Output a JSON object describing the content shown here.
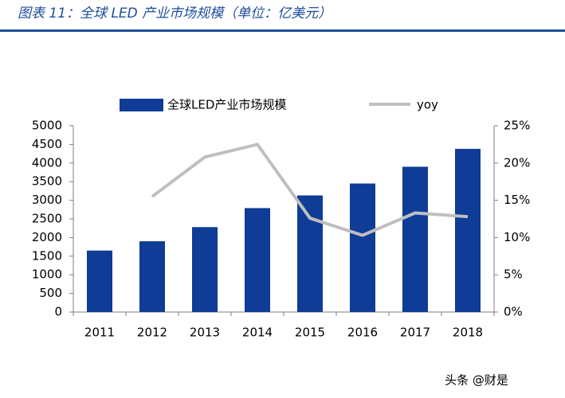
{
  "chart_data": {
    "type": "bar",
    "title": "图表 11：全球 LED 产业市场规模（单位：亿美元）",
    "categories": [
      "2011",
      "2012",
      "2013",
      "2014",
      "2015",
      "2016",
      "2017",
      "2018"
    ],
    "series": [
      {
        "name": "全球LED产业市场规模",
        "color": "#0e3c96",
        "values": [
          1650,
          1900,
          2280,
          2790,
          3130,
          3450,
          3900,
          4380
        ]
      },
      {
        "name": "yoy",
        "color": "#bfbfbf",
        "axis": "y2",
        "values": [
          null,
          15.5,
          20.8,
          22.5,
          12.6,
          10.3,
          13.3,
          12.8
        ]
      }
    ],
    "ylim": [
      0,
      5000
    ],
    "yticks": [
      0,
      500,
      1000,
      1500,
      2000,
      2500,
      3000,
      3500,
      4000,
      4500,
      5000
    ],
    "y2lim": [
      0,
      25
    ],
    "y2ticks": [
      {
        "value": 0,
        "label": "0%"
      },
      {
        "value": 5,
        "label": "5%"
      },
      {
        "value": 10,
        "label": "10%"
      },
      {
        "value": 15,
        "label": "15%"
      },
      {
        "value": 20,
        "label": "20%"
      },
      {
        "value": 25,
        "label": "25%"
      }
    ],
    "legend": "top",
    "grid": false,
    "watermark": "头条 @财是"
  }
}
